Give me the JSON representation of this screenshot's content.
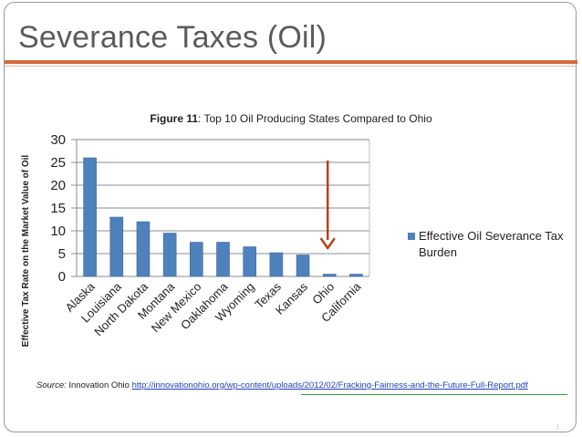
{
  "slide": {
    "title": "Severance Taxes (Oil)"
  },
  "figure": {
    "caption_bold": "Figure 11",
    "caption_rest": ": Top 10 Oil Producing States Compared to Ohio"
  },
  "source": {
    "label": "Source:",
    "text": " Innovation Ohio ",
    "link": "http://innovationohio.org/wp-content/uploads/2012/02/Fracking-Fairness-and-the-Future-Full-Report.pdf"
  },
  "colors": {
    "bar": "#4f81bd",
    "arrow": "#b5431c",
    "title_rule": "#d4693a"
  },
  "chart_data": {
    "type": "bar",
    "title": "Figure 11: Top 10 Oil Producing States Compared to Ohio",
    "xlabel": "",
    "ylabel": "Effective Tax Rate on the Market Value of Oil",
    "categories": [
      "Alaska",
      "Louisiana",
      "North Dakota",
      "Montana",
      "New Mexico",
      "Oaklahoma",
      "Wyoming",
      "Texas",
      "Kansas",
      "Ohio",
      "California"
    ],
    "series": [
      {
        "name": "Effective Oil Severance Tax Burden",
        "values": [
          26,
          13,
          12,
          9.5,
          7.5,
          7.5,
          6.5,
          5.2,
          4.7,
          0.5,
          0.5
        ]
      }
    ],
    "ylim": [
      0,
      30
    ],
    "yticks": [
      0,
      5,
      10,
      15,
      20,
      25,
      30
    ],
    "grid": true,
    "legend": "right",
    "annotation": "arrow pointing down to Ohio"
  }
}
